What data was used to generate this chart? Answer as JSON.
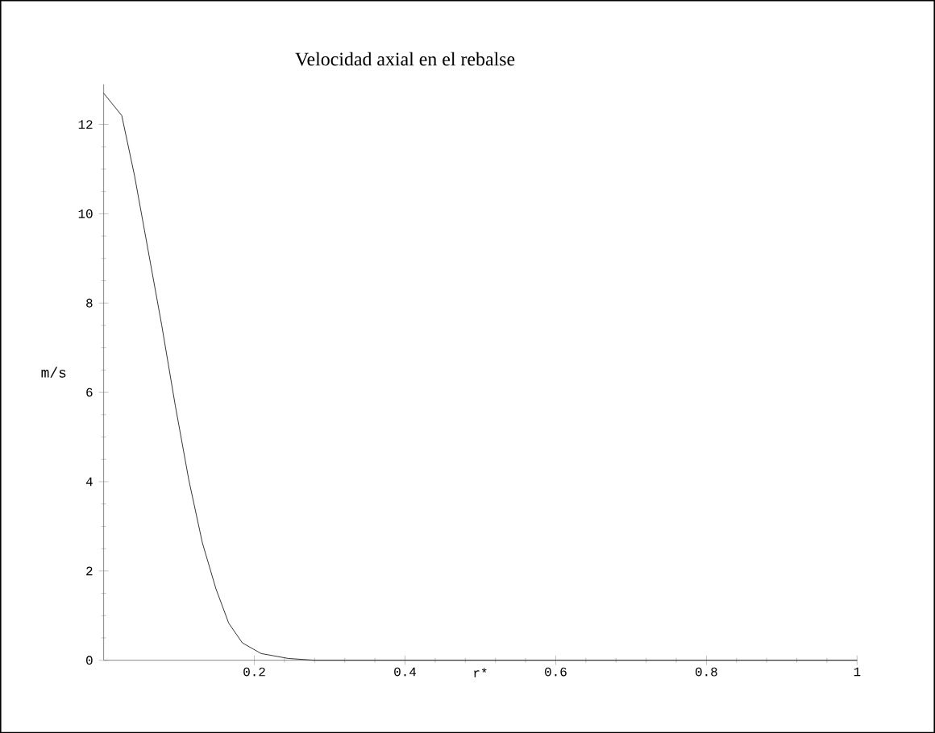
{
  "chart_data": {
    "type": "line",
    "title": "Velocidad axial en el rebalse",
    "xlabel": "r*",
    "ylabel": "m/s",
    "color": "#000000",
    "x": [
      0,
      0.024,
      0.041,
      0.059,
      0.077,
      0.095,
      0.113,
      0.131,
      0.149,
      0.166,
      0.184,
      0.209,
      0.245,
      0.28,
      0.4,
      0.6,
      0.8,
      1
    ],
    "values": [
      12.7,
      12.2,
      10.85,
      9.18,
      7.51,
      5.71,
      4.04,
      2.63,
      1.6,
      0.83,
      0.39,
      0.15,
      0.04,
      0,
      0,
      0,
      0,
      0
    ],
    "xlim": [
      0,
      1
    ],
    "ylim": [
      0,
      12.9
    ],
    "xticks": [
      0.2,
      0.4,
      0.6,
      0.8,
      1
    ],
    "yticks": [
      0,
      2,
      4,
      6,
      8,
      10,
      12
    ],
    "grid": false,
    "marker": "none",
    "line_style": "solid"
  }
}
